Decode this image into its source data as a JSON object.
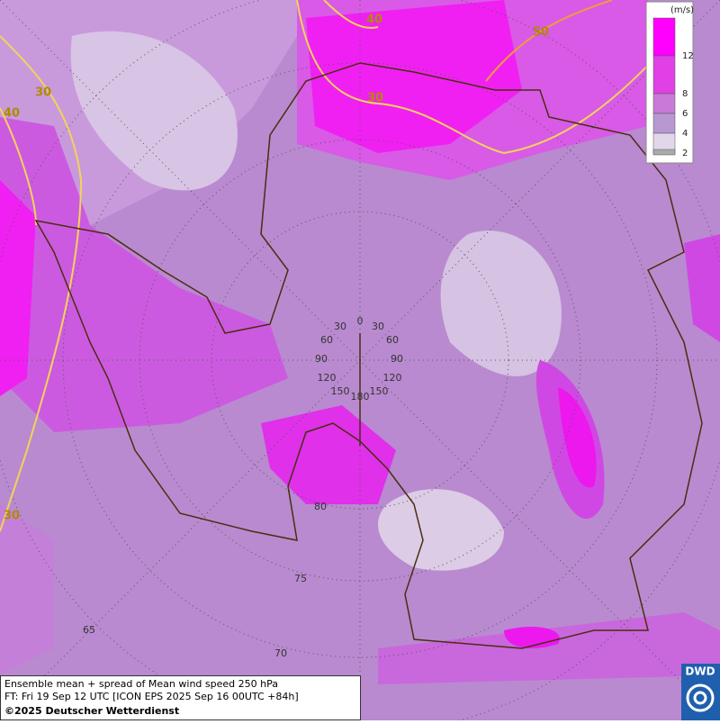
{
  "legend": {
    "unit": "(m/s)",
    "levels": [
      12,
      8,
      6,
      4,
      2
    ]
  },
  "contour_labels": [
    40,
    30,
    40,
    50,
    30,
    30
  ],
  "longitude_labels": {
    "top": 0,
    "left": [
      30,
      60,
      90,
      120,
      150
    ],
    "right": [
      30,
      60,
      90,
      120,
      150
    ],
    "bottom": 180
  },
  "latitude_labels": [
    80,
    75,
    70,
    65
  ],
  "footer": {
    "line1": "Ensemble mean + spread of Mean wind speed 250 hPa",
    "line2": "FT: Fri 19 Sep 12 UTC [ICON EPS 2025 Sep 16 00UTC +84h]",
    "line3": "©2025 Deutscher Wetterdienst"
  },
  "logo": "DWD"
}
